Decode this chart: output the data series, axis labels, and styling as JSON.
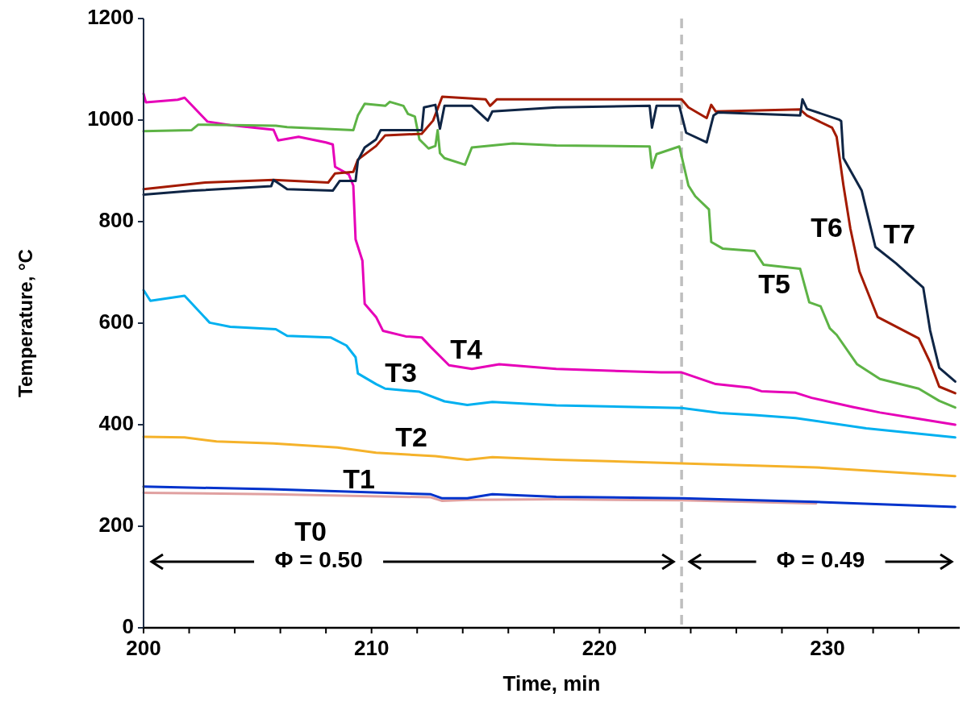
{
  "chart_data": {
    "type": "line",
    "xlabel": "Time, min",
    "ylabel": "Temperature, °C",
    "xlim": [
      200,
      235.8
    ],
    "ylim": [
      0,
      1200
    ],
    "xticks": [
      200,
      {
        "value": 202,
        "label": null
      },
      {
        "value": 204,
        "label": null
      },
      {
        "value": 206,
        "label": null
      },
      {
        "value": 208,
        "label": null
      },
      210,
      {
        "value": 212,
        "label": null
      },
      {
        "value": 214,
        "label": null
      },
      {
        "value": 216,
        "label": null
      },
      {
        "value": 218,
        "label": null
      },
      220,
      {
        "value": 222,
        "label": null
      },
      {
        "value": 224,
        "label": null
      },
      {
        "value": 226,
        "label": null
      },
      {
        "value": 228,
        "label": null
      },
      230,
      {
        "value": 232,
        "label": null
      },
      {
        "value": 234,
        "label": null
      }
    ],
    "yticks": [
      0,
      200,
      400,
      600,
      800,
      1000,
      1200
    ],
    "grid": false,
    "marker": "none",
    "line_style": "solid",
    "ref_lines": [
      {
        "axis": "x",
        "value": 223.6,
        "color": "#bfbfbf",
        "line_style": "dashed"
      }
    ],
    "annotations": [
      "Φ = 0.50",
      "Φ = 0.49"
    ],
    "series": [
      {
        "name": "T0",
        "color": "#e0a0a0",
        "x": [
          200,
          205.6,
          212.6,
          213.1,
          214.2,
          218.1,
          223.6,
          229.5
        ],
        "values": [
          266,
          263,
          257,
          250,
          252,
          253,
          251,
          245
        ]
      },
      {
        "name": "T1",
        "color": "#0033cc",
        "x": [
          200,
          205.6,
          212.6,
          213.1,
          214.2,
          215.3,
          218.1,
          223.6,
          229.5,
          235.6
        ],
        "values": [
          278,
          273,
          263,
          255,
          255,
          263,
          258,
          255,
          248,
          238
        ]
      },
      {
        "name": "T2",
        "color": "#f5b22a",
        "x": [
          200,
          201.8,
          203.2,
          205.7,
          208.5,
          210.2,
          212.8,
          214.2,
          215.3,
          218.1,
          223.6,
          229.5,
          235.6
        ],
        "values": [
          376,
          375,
          367,
          363,
          355,
          345,
          338,
          331,
          336,
          331,
          324,
          316,
          299
        ]
      },
      {
        "name": "T3",
        "color": "#00b0f0",
        "x": [
          200,
          200.3,
          201.8,
          202.9,
          203.8,
          205.8,
          206.3,
          208.2,
          208.9,
          209.3,
          209.4,
          210.2,
          210.6,
          212.1,
          213.2,
          214.2,
          215.3,
          218.1,
          223.6,
          225.3,
          226.8,
          228.6,
          231.7,
          235.6
        ],
        "values": [
          665,
          644,
          654,
          601,
          593,
          588,
          575,
          572,
          556,
          533,
          501,
          480,
          471,
          465,
          446,
          439,
          445,
          438,
          433,
          423,
          419,
          413,
          393,
          375
        ]
      },
      {
        "name": "T4",
        "color": "#e600b8",
        "x": [
          200,
          200.1,
          201.5,
          201.8,
          202.8,
          203.8,
          205.7,
          205.9,
          206.8,
          208,
          208.3,
          208.4,
          209,
          209.2,
          209.3,
          209.6,
          209.7,
          210.2,
          210.5,
          211.5,
          212.2,
          212.6,
          213.4,
          214.4,
          215.6,
          218.1,
          222.7,
          223.6,
          225.1,
          226.6,
          227.1,
          228.6,
          229.3,
          231.1,
          232.3,
          233.8,
          235.6
        ],
        "values": [
          1052,
          1035,
          1040,
          1044,
          997,
          990,
          981,
          960,
          967,
          956,
          952,
          908,
          893,
          871,
          765,
          723,
          638,
          612,
          585,
          574,
          572,
          553,
          517,
          510,
          519,
          510,
          503,
          503,
          480,
          473,
          466,
          463,
          453,
          435,
          424,
          413,
          400
        ]
      },
      {
        "name": "T5",
        "color": "#5db345",
        "x": [
          200,
          202.1,
          202.4,
          205.8,
          206.3,
          209.2,
          209.4,
          209.7,
          210.6,
          210.8,
          211.4,
          211.6,
          211.9,
          212.1,
          212.5,
          212.8,
          212.9,
          213,
          213.2,
          214.1,
          214.4,
          216.2,
          218.1,
          222.2,
          222.3,
          222.5,
          223.5,
          223.9,
          224.2,
          224.8,
          224.9,
          225.4,
          226.8,
          227.2,
          228.8,
          229.2,
          229.7,
          230.1,
          230.4,
          231.3,
          232.3,
          234,
          234.9,
          235.6
        ],
        "values": [
          978,
          980,
          991,
          989,
          986,
          980,
          1009,
          1032,
          1028,
          1036,
          1028,
          1012,
          1007,
          962,
          944,
          949,
          980,
          935,
          925,
          912,
          946,
          954,
          950,
          948,
          906,
          933,
          948,
          871,
          850,
          824,
          760,
          747,
          742,
          715,
          707,
          641,
          633,
          590,
          577,
          519,
          490,
          471,
          447,
          434
        ]
      },
      {
        "name": "T6",
        "color": "#a31a00",
        "x": [
          200,
          202.7,
          205.7,
          208.1,
          208.4,
          209.2,
          209.4,
          210.2,
          210.6,
          212.2,
          212.7,
          213.1,
          215,
          215.2,
          215.5,
          218.1,
          223.6,
          223.9,
          224.7,
          224.9,
          225.1,
          228.8,
          229.1,
          230.2,
          230.4,
          230.7,
          231,
          231.4,
          232.2,
          234,
          234.5,
          234.9,
          235.6
        ],
        "values": [
          864,
          877,
          882,
          877,
          895,
          898,
          922,
          949,
          970,
          973,
          999,
          1046,
          1041,
          1028,
          1041,
          1041,
          1041,
          1025,
          1004,
          1030,
          1017,
          1021,
          1009,
          985,
          967,
          871,
          787,
          702,
          612,
          570,
          523,
          475,
          462
        ]
      },
      {
        "name": "T7",
        "color": "#0f2545",
        "x": [
          200,
          202.2,
          205.6,
          205.7,
          206.3,
          208.3,
          208.6,
          209.3,
          209.4,
          209.7,
          210.2,
          210.4,
          212.2,
          212.3,
          212.8,
          213,
          213.2,
          214.4,
          215.1,
          215.3,
          218.1,
          222.2,
          222.3,
          222.5,
          223.5,
          223.8,
          224.7,
          225,
          225.2,
          228.8,
          228.9,
          229.1,
          230.5,
          230.6,
          230.7,
          231.5,
          232.1,
          233,
          234.2,
          234.5,
          234.9,
          235.6
        ],
        "values": [
          853,
          861,
          870,
          882,
          864,
          861,
          880,
          880,
          920,
          946,
          962,
          980,
          980,
          1025,
          1030,
          983,
          1028,
          1028,
          999,
          1017,
          1025,
          1028,
          985,
          1028,
          1028,
          975,
          956,
          1009,
          1015,
          1009,
          1041,
          1022,
          1001,
          998,
          925,
          861,
          750,
          718,
          670,
          586,
          512,
          485
        ]
      }
    ]
  }
}
